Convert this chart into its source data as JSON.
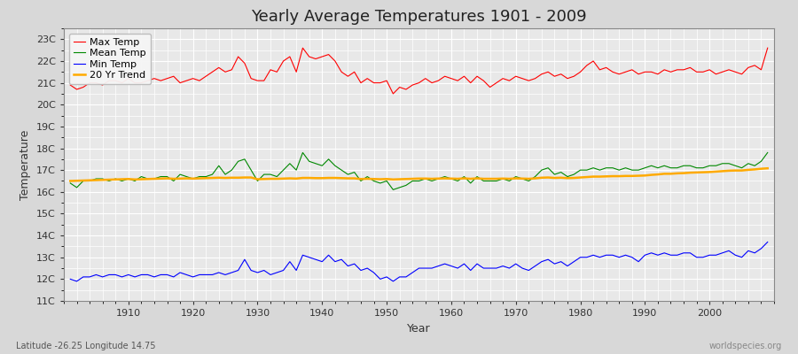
{
  "title": "Yearly Average Temperatures 1901 - 2009",
  "xlabel": "Year",
  "ylabel": "Temperature",
  "lat_lon_label": "Latitude -26.25 Longitude 14.75",
  "watermark": "worldspecies.org",
  "start_year": 1901,
  "end_year": 2009,
  "yticks": [
    11,
    12,
    13,
    14,
    15,
    16,
    17,
    18,
    19,
    20,
    21,
    22,
    23
  ],
  "ytick_labels": [
    "11C",
    "12C",
    "13C",
    "14C",
    "15C",
    "16C",
    "17C",
    "18C",
    "19C",
    "20C",
    "21C",
    "22C",
    "23C"
  ],
  "xticks": [
    1910,
    1920,
    1930,
    1940,
    1950,
    1960,
    1970,
    1980,
    1990,
    2000
  ],
  "ylim": [
    11.0,
    23.5
  ],
  "xlim": [
    1900,
    2010
  ],
  "bg_color": "#d8d8d8",
  "plot_bg_color": "#e8e8e8",
  "grid_color": "#ffffff",
  "max_temp_color": "#ff0000",
  "mean_temp_color": "#008800",
  "min_temp_color": "#0000ff",
  "trend_color": "#ffaa00",
  "legend_labels": [
    "Max Temp",
    "Mean Temp",
    "Min Temp",
    "20 Yr Trend"
  ],
  "max_temps": [
    20.9,
    20.7,
    20.8,
    21.0,
    21.0,
    20.9,
    21.1,
    21.1,
    21.0,
    21.2,
    21.0,
    21.0,
    21.1,
    21.2,
    21.1,
    21.2,
    21.3,
    21.0,
    21.1,
    21.2,
    21.1,
    21.3,
    21.5,
    21.7,
    21.5,
    21.6,
    22.2,
    21.9,
    21.2,
    21.1,
    21.1,
    21.6,
    21.5,
    22.0,
    22.2,
    21.5,
    22.6,
    22.2,
    22.1,
    22.2,
    22.3,
    22.0,
    21.5,
    21.3,
    21.5,
    21.0,
    21.2,
    21.0,
    21.0,
    21.1,
    20.5,
    20.8,
    20.7,
    20.9,
    21.0,
    21.2,
    21.0,
    21.1,
    21.3,
    21.2,
    21.1,
    21.3,
    21.0,
    21.3,
    21.1,
    20.8,
    21.0,
    21.2,
    21.1,
    21.3,
    21.2,
    21.1,
    21.2,
    21.4,
    21.5,
    21.3,
    21.4,
    21.2,
    21.3,
    21.5,
    21.8,
    22.0,
    21.6,
    21.7,
    21.5,
    21.4,
    21.5,
    21.6,
    21.4,
    21.5,
    21.5,
    21.4,
    21.6,
    21.5,
    21.6,
    21.6,
    21.7,
    21.5,
    21.5,
    21.6,
    21.4,
    21.5,
    21.6,
    21.5,
    21.4,
    21.7,
    21.8,
    21.6,
    22.6
  ],
  "mean_temps": [
    16.4,
    16.2,
    16.5,
    16.5,
    16.6,
    16.6,
    16.5,
    16.6,
    16.5,
    16.6,
    16.5,
    16.7,
    16.6,
    16.6,
    16.7,
    16.7,
    16.5,
    16.8,
    16.7,
    16.6,
    16.7,
    16.7,
    16.8,
    17.2,
    16.8,
    17.0,
    17.4,
    17.5,
    17.0,
    16.5,
    16.8,
    16.8,
    16.7,
    17.0,
    17.3,
    17.0,
    17.8,
    17.4,
    17.3,
    17.2,
    17.5,
    17.2,
    17.0,
    16.8,
    16.9,
    16.5,
    16.7,
    16.5,
    16.4,
    16.5,
    16.1,
    16.2,
    16.3,
    16.5,
    16.5,
    16.6,
    16.5,
    16.6,
    16.7,
    16.6,
    16.5,
    16.7,
    16.4,
    16.7,
    16.5,
    16.5,
    16.5,
    16.6,
    16.5,
    16.7,
    16.6,
    16.5,
    16.7,
    17.0,
    17.1,
    16.8,
    16.9,
    16.7,
    16.8,
    17.0,
    17.0,
    17.1,
    17.0,
    17.1,
    17.1,
    17.0,
    17.1,
    17.0,
    17.0,
    17.1,
    17.2,
    17.1,
    17.2,
    17.1,
    17.1,
    17.2,
    17.2,
    17.1,
    17.1,
    17.2,
    17.2,
    17.3,
    17.3,
    17.2,
    17.1,
    17.3,
    17.2,
    17.4,
    17.8
  ],
  "min_temps": [
    12.0,
    11.9,
    12.1,
    12.1,
    12.2,
    12.1,
    12.2,
    12.2,
    12.1,
    12.2,
    12.1,
    12.2,
    12.2,
    12.1,
    12.2,
    12.2,
    12.1,
    12.3,
    12.2,
    12.1,
    12.2,
    12.2,
    12.2,
    12.3,
    12.2,
    12.3,
    12.4,
    12.9,
    12.4,
    12.3,
    12.4,
    12.2,
    12.3,
    12.4,
    12.8,
    12.4,
    13.1,
    13.0,
    12.9,
    12.8,
    13.1,
    12.8,
    12.9,
    12.6,
    12.7,
    12.4,
    12.5,
    12.3,
    12.0,
    12.1,
    11.9,
    12.1,
    12.1,
    12.3,
    12.5,
    12.5,
    12.5,
    12.6,
    12.7,
    12.6,
    12.5,
    12.7,
    12.4,
    12.7,
    12.5,
    12.5,
    12.5,
    12.6,
    12.5,
    12.7,
    12.5,
    12.4,
    12.6,
    12.8,
    12.9,
    12.7,
    12.8,
    12.6,
    12.8,
    13.0,
    13.0,
    13.1,
    13.0,
    13.1,
    13.1,
    13.0,
    13.1,
    13.0,
    12.8,
    13.1,
    13.2,
    13.1,
    13.2,
    13.1,
    13.1,
    13.2,
    13.2,
    13.0,
    13.0,
    13.1,
    13.1,
    13.2,
    13.3,
    13.1,
    13.0,
    13.3,
    13.2,
    13.4,
    13.7
  ],
  "trend_mean": [
    16.5,
    16.51,
    16.52,
    16.53,
    16.54,
    16.55,
    16.56,
    16.57,
    16.58,
    16.59,
    16.57,
    16.58,
    16.59,
    16.6,
    16.61,
    16.62,
    16.6,
    16.61,
    16.62,
    16.61,
    16.62,
    16.63,
    16.64,
    16.65,
    16.64,
    16.65,
    16.65,
    16.66,
    16.66,
    16.58,
    16.59,
    16.6,
    16.6,
    16.61,
    16.62,
    16.61,
    16.64,
    16.64,
    16.63,
    16.63,
    16.64,
    16.64,
    16.63,
    16.62,
    16.62,
    16.59,
    16.6,
    16.59,
    16.58,
    16.59,
    16.57,
    16.58,
    16.59,
    16.6,
    16.61,
    16.61,
    16.6,
    16.61,
    16.62,
    16.61,
    16.6,
    16.62,
    16.6,
    16.62,
    16.6,
    16.6,
    16.6,
    16.61,
    16.6,
    16.62,
    16.61,
    16.6,
    16.62,
    16.65,
    16.66,
    16.64,
    16.65,
    16.63,
    16.64,
    16.66,
    16.68,
    16.7,
    16.7,
    16.71,
    16.72,
    16.72,
    16.73,
    16.73,
    16.74,
    16.75,
    16.78,
    16.8,
    16.83,
    16.83,
    16.85,
    16.86,
    16.88,
    16.89,
    16.9,
    16.91,
    16.93,
    16.95,
    16.97,
    16.98,
    16.98,
    17.01,
    17.03,
    17.06,
    17.08
  ]
}
